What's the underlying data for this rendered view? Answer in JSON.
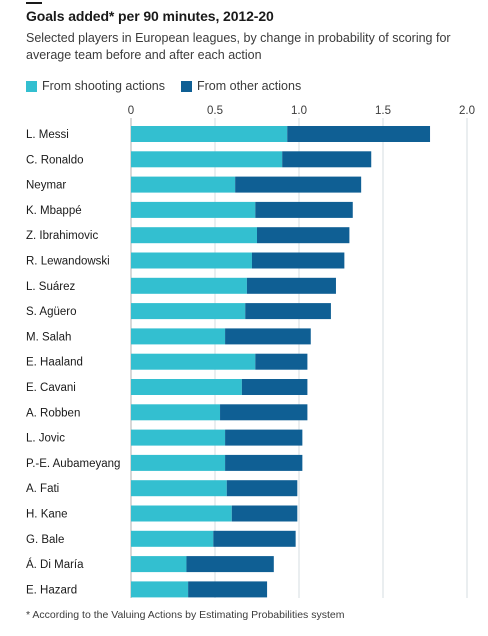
{
  "chart_data": {
    "type": "bar",
    "orientation": "horizontal",
    "stacked": true,
    "title": "Goals added* per 90 minutes, 2012-20",
    "subtitle": "Selected players in European leagues, by change in probability of scoring for average team before and after each action",
    "footnote": "* According to the Valuing Actions by Estimating Probabilities system",
    "xlim": [
      0,
      2.0
    ],
    "xticks": [
      "0",
      "0.5",
      "1.0",
      "1.5",
      "2.0"
    ],
    "xtick_values": [
      0,
      0.5,
      1.0,
      1.5,
      2.0
    ],
    "grid": true,
    "legend_position": "top",
    "categories": [
      "L. Messi",
      "C. Ronaldo",
      "Neymar",
      "K. Mbappé",
      "Z. Ibrahimovic",
      "R. Lewandowski",
      "L. Suárez",
      "S. Agüero",
      "M. Salah",
      "E. Haaland",
      "E. Cavani",
      "A. Robben",
      "L. Jovic",
      "P.-E. Aubameyang",
      "A. Fati",
      "H. Kane",
      "G. Bale",
      "Á. Di María",
      "E. Hazard"
    ],
    "series": [
      {
        "name": "From shooting actions",
        "color": "#33bfd0",
        "values": [
          0.93,
          0.9,
          0.62,
          0.74,
          0.75,
          0.72,
          0.69,
          0.68,
          0.56,
          0.74,
          0.66,
          0.53,
          0.56,
          0.56,
          0.57,
          0.6,
          0.49,
          0.33,
          0.34
        ]
      },
      {
        "name": "From other actions",
        "color": "#0f5f94",
        "values": [
          0.85,
          0.53,
          0.75,
          0.58,
          0.55,
          0.55,
          0.53,
          0.51,
          0.51,
          0.31,
          0.39,
          0.52,
          0.46,
          0.46,
          0.42,
          0.39,
          0.49,
          0.52,
          0.47
        ]
      }
    ]
  }
}
